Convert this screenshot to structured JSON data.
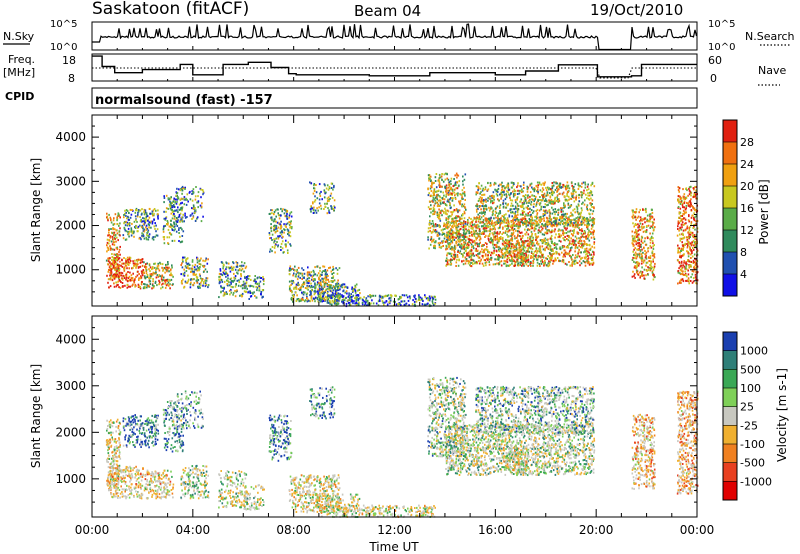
{
  "header": {
    "station": "Saskatoon (fitACF)",
    "beam": "Beam 04",
    "date": "19/Oct/2010"
  },
  "nsky_panel": {
    "left_label": "N.Sky",
    "right_label": "N.Search",
    "left_ticks": [
      "10^5",
      "10^0"
    ],
    "right_ticks": [
      "10^5",
      "10^0"
    ]
  },
  "freq_panel": {
    "left_label_line1": "Freq.",
    "left_label_line2": "[MHz]",
    "right_label": "Nave",
    "left_ticks": [
      "18",
      "8"
    ],
    "right_ticks": [
      "60",
      "0"
    ]
  },
  "cpid": {
    "label": "CPID",
    "value": "normalsound (fast) -157"
  },
  "chart_data": [
    {
      "type": "heatmap",
      "title": "",
      "ylabel": "Slant Range [km]",
      "xlabel": "",
      "ylim": [
        180,
        4500
      ],
      "y_ticks": [
        "1000",
        "2000",
        "3000",
        "4000"
      ],
      "colorbar_label": "Power [dB]",
      "colorbar_ticks": [
        "4",
        "8",
        "12",
        "16",
        "20",
        "24",
        "28"
      ],
      "colorbar_colors": [
        "#1010e6",
        "#2050b0",
        "#2f8a5c",
        "#5aac48",
        "#c8c820",
        "#f0a010",
        "#f07010",
        "#e02010"
      ]
    },
    {
      "type": "heatmap",
      "title": "",
      "ylabel": "Slant Range [km]",
      "xlabel": "Time UT",
      "ylim": [
        180,
        4500
      ],
      "y_ticks": [
        "1000",
        "2000",
        "3000",
        "4000"
      ],
      "x_ticks": [
        "00:00",
        "04:00",
        "08:00",
        "12:00",
        "16:00",
        "20:00",
        "00:00"
      ],
      "colorbar_label": "Velocity [m s-1]",
      "colorbar_ticks": [
        "1000",
        "500",
        "100",
        "25",
        "-25",
        "-100",
        "-500",
        "-1000"
      ],
      "colorbar_colors": [
        "#1a3fb0",
        "#2f7f78",
        "#3aa855",
        "#7fd058",
        "#c8c8c0",
        "#f0b030",
        "#f08020",
        "#e84020",
        "#e00000"
      ]
    }
  ]
}
